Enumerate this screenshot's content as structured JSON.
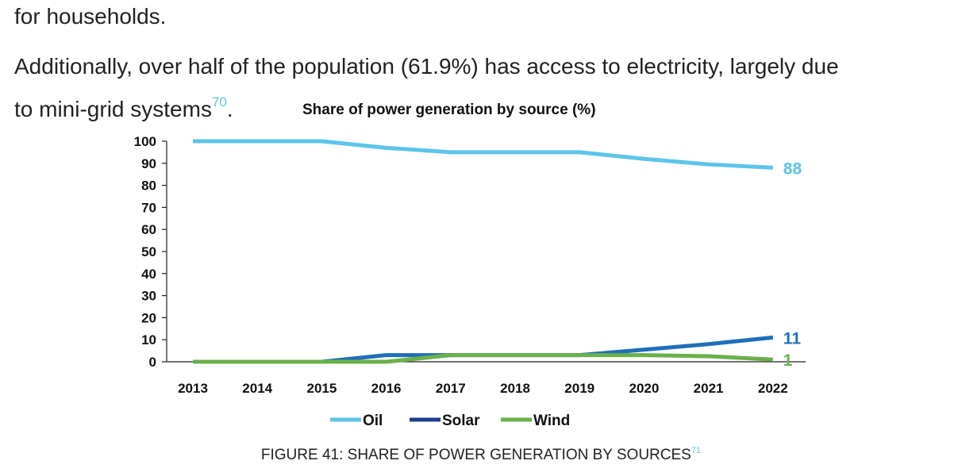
{
  "text": {
    "line1": "for households.",
    "line2": "Additionally, over half of the population (61.9%) has access to electricity, largely due",
    "line3": "to mini-grid systems",
    "line3_ref": "70",
    "line3_end": "."
  },
  "caption": {
    "text": "FIGURE 41: SHARE OF POWER GENERATION BY SOURCES",
    "ref": "71"
  },
  "chart_data": {
    "type": "line",
    "title": "Share of power generation by source (%)",
    "xlabel": "",
    "ylabel": "",
    "ylim": [
      0,
      100
    ],
    "yticks": [
      0,
      10,
      20,
      30,
      40,
      50,
      60,
      70,
      80,
      90,
      100
    ],
    "categories": [
      "2013",
      "2014",
      "2015",
      "2016",
      "2017",
      "2018",
      "2019",
      "2020",
      "2021",
      "2022"
    ],
    "legend_position": "bottom",
    "series": [
      {
        "name": "Oil",
        "color": "#5bc5e8",
        "end_label": "88",
        "values": [
          100,
          100,
          100,
          97,
          95,
          95,
          95,
          92,
          89.5,
          88
        ]
      },
      {
        "name": "Solar",
        "color": "#1f6fb8",
        "legend_color": "#1c3f8c",
        "end_label": "11",
        "values": [
          0,
          0,
          0,
          3,
          3,
          3,
          3,
          5.5,
          8,
          11
        ]
      },
      {
        "name": "Wind",
        "color": "#6ab04c",
        "end_label": "1",
        "values": [
          0,
          0,
          0,
          0,
          3,
          3,
          3,
          3,
          2.5,
          1
        ]
      }
    ]
  }
}
